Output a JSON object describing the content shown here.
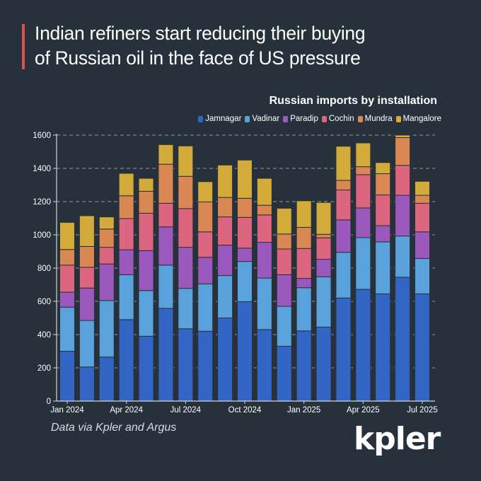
{
  "header": {
    "title_lines": [
      "Indian refiners start reducing their buying",
      "of Russian oil in the face of US pressure"
    ],
    "accent_color": "#e0504a"
  },
  "footer": {
    "source": "Data via Kpler and Argus",
    "logo": "kpler"
  },
  "chart_data": {
    "type": "bar",
    "stacked": true,
    "title": "Russian imports by installation",
    "xlabel": "",
    "ylabel": "",
    "ylim": [
      0,
      1600
    ],
    "yticks": [
      0,
      200,
      400,
      600,
      800,
      1000,
      1200,
      1400,
      1600
    ],
    "grid": true,
    "legend_position": "top-right",
    "categories": [
      "Jan 2024",
      "Feb 2024",
      "Mar 2024",
      "Apr 2024",
      "May 2024",
      "Jun 2024",
      "Jul 2024",
      "Aug 2024",
      "Sep 2024",
      "Oct 2024",
      "Nov 2024",
      "Dec 2024",
      "Jan 2025",
      "Feb 2025",
      "Mar 2025",
      "Apr 2025",
      "May 2025",
      "Jun 2025",
      "Jul 2025"
    ],
    "xtick_labels": [
      {
        "index": 0,
        "label": "Jan 2024"
      },
      {
        "index": 3,
        "label": "Apr 2024"
      },
      {
        "index": 6,
        "label": "Jul 2024"
      },
      {
        "index": 9,
        "label": "Oct 2024"
      },
      {
        "index": 12,
        "label": "Jan 2025"
      },
      {
        "index": 15,
        "label": "Apr 2025"
      },
      {
        "index": 18,
        "label": "Jul 2025"
      }
    ],
    "series": [
      {
        "name": "Jamnagar",
        "color": "#3366c4",
        "values": [
          300,
          205,
          265,
          490,
          390,
          558,
          435,
          420,
          500,
          598,
          430,
          330,
          422,
          445,
          620,
          672,
          645,
          745,
          645
        ]
      },
      {
        "name": "Vadinar",
        "color": "#5aa2dc",
        "values": [
          265,
          280,
          340,
          270,
          275,
          260,
          243,
          285,
          255,
          242,
          310,
          240,
          260,
          303,
          275,
          311,
          313,
          248,
          213
        ]
      },
      {
        "name": "Paradip",
        "color": "#9b59be",
        "values": [
          90,
          195,
          220,
          150,
          240,
          230,
          247,
          160,
          183,
          80,
          215,
          190,
          56,
          105,
          195,
          179,
          97,
          245,
          160
        ]
      },
      {
        "name": "Cochin",
        "color": "#dc6580",
        "values": [
          163,
          125,
          100,
          188,
          225,
          142,
          233,
          153,
          170,
          185,
          165,
          155,
          180,
          129,
          180,
          200,
          185,
          180,
          172
        ]
      },
      {
        "name": "Mundra",
        "color": "#d98753",
        "values": [
          94,
          125,
          110,
          137,
          132,
          235,
          194,
          180,
          117,
          115,
          58,
          90,
          127,
          21,
          58,
          48,
          128,
          167,
          48
        ]
      },
      {
        "name": "Mangalore",
        "color": "#d2ab3a",
        "values": [
          163,
          185,
          73,
          135,
          78,
          118,
          183,
          122,
          195,
          230,
          162,
          155,
          160,
          192,
          205,
          143,
          67,
          15,
          84
        ]
      }
    ]
  }
}
